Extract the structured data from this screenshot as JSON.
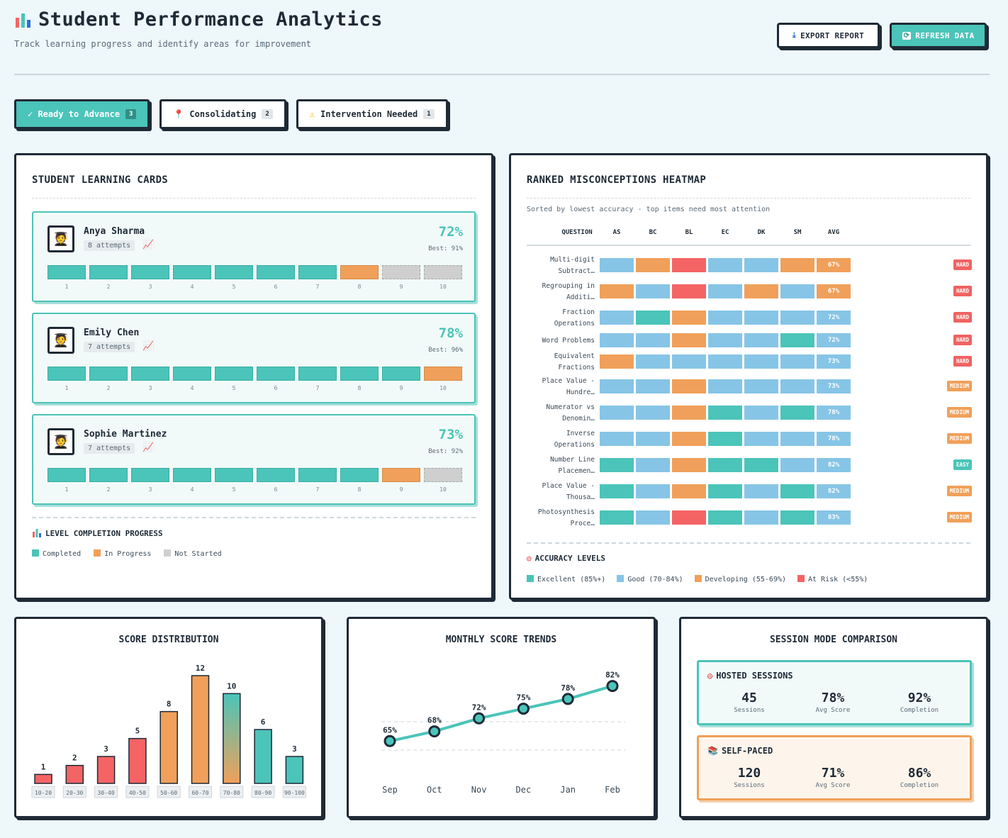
{
  "header": {
    "icon": "bar-chart-icon",
    "title": "Student Performance Analytics",
    "subtitle": "Track learning progress and identify areas for improvement",
    "export_label": "EXPORT REPORT",
    "refresh_label": "REFRESH DATA"
  },
  "filters": [
    {
      "label": "✓ Ready to Advance",
      "count": "3"
    },
    {
      "label": "Consolidating",
      "count": "2"
    },
    {
      "label": "Intervention Needed",
      "count": "1"
    }
  ],
  "cards_panel": {
    "title": "STUDENT LEARNING CARDS",
    "level_title": "LEVEL COMPLETION PROGRESS",
    "legend": [
      "Completed",
      "In Progress",
      "Not Started"
    ],
    "levels": [
      "1",
      "2",
      "3",
      "4",
      "5",
      "6",
      "7",
      "8",
      "9",
      "10"
    ]
  },
  "students": [
    {
      "name": "Anya Sharma",
      "attempts": "8 attempts",
      "score": "72%",
      "best": "Best: 91%",
      "progress": [
        "completed",
        "completed",
        "completed",
        "completed",
        "completed",
        "completed",
        "completed",
        "inprogress",
        "notstarted",
        "notstarted"
      ]
    },
    {
      "name": "Emily Chen",
      "attempts": "7 attempts",
      "score": "78%",
      "best": "Best: 96%",
      "progress": [
        "completed",
        "completed",
        "completed",
        "completed",
        "completed",
        "completed",
        "completed",
        "completed",
        "completed",
        "inprogress"
      ]
    },
    {
      "name": "Sophie Martinez",
      "attempts": "7 attempts",
      "score": "73%",
      "best": "Best: 92%",
      "progress": [
        "completed",
        "completed",
        "completed",
        "completed",
        "completed",
        "completed",
        "completed",
        "completed",
        "inprogress",
        "notstarted"
      ]
    }
  ],
  "heatmap": {
    "title": "RANKED MISCONCEPTIONS HEATMAP",
    "subtitle": "Sorted by lowest accuracy - top items need most attention",
    "columns": [
      "QUESTION",
      "AS",
      "BC",
      "BL",
      "EC",
      "DK",
      "SM",
      "AVG"
    ],
    "rows": [
      {
        "q1": "Multi-digit",
        "q2": "Subtract…",
        "cells": [
          "good",
          "developing",
          "risk",
          "good",
          "good",
          "developing"
        ],
        "avg": "67%",
        "avg_level": "developing",
        "tag": "HARD"
      },
      {
        "q1": "Regrouping in",
        "q2": "Additi…",
        "cells": [
          "developing",
          "good",
          "risk",
          "good",
          "developing",
          "good"
        ],
        "avg": "67%",
        "avg_level": "developing",
        "tag": "HARD"
      },
      {
        "q1": "Fraction",
        "q2": "Operations",
        "cells": [
          "good",
          "excellent",
          "developing",
          "good",
          "good",
          "good"
        ],
        "avg": "72%",
        "avg_level": "good",
        "tag": "HARD"
      },
      {
        "q1": "Word Problems",
        "q2": "",
        "cells": [
          "good",
          "good",
          "developing",
          "good",
          "good",
          "excellent"
        ],
        "avg": "72%",
        "avg_level": "good",
        "tag": "HARD"
      },
      {
        "q1": "Equivalent",
        "q2": "Fractions",
        "cells": [
          "developing",
          "good",
          "good",
          "good",
          "good",
          "good"
        ],
        "avg": "73%",
        "avg_level": "good",
        "tag": "HARD"
      },
      {
        "q1": "Place Value -",
        "q2": "Hundre…",
        "cells": [
          "good",
          "good",
          "developing",
          "good",
          "good",
          "good"
        ],
        "avg": "73%",
        "avg_level": "good",
        "tag": "MEDIUM"
      },
      {
        "q1": "Numerator vs",
        "q2": "Denomin…",
        "cells": [
          "good",
          "good",
          "developing",
          "excellent",
          "good",
          "excellent"
        ],
        "avg": "78%",
        "avg_level": "good",
        "tag": "MEDIUM"
      },
      {
        "q1": "Inverse",
        "q2": "Operations",
        "cells": [
          "good",
          "good",
          "developing",
          "excellent",
          "good",
          "good"
        ],
        "avg": "78%",
        "avg_level": "good",
        "tag": "MEDIUM"
      },
      {
        "q1": "Number Line",
        "q2": "Placemen…",
        "cells": [
          "excellent",
          "good",
          "developing",
          "excellent",
          "excellent",
          "good"
        ],
        "avg": "82%",
        "avg_level": "good",
        "tag": "EASY"
      },
      {
        "q1": "Place Value -",
        "q2": "Thousa…",
        "cells": [
          "excellent",
          "good",
          "developing",
          "excellent",
          "good",
          "excellent"
        ],
        "avg": "82%",
        "avg_level": "good",
        "tag": "MEDIUM"
      },
      {
        "q1": "Photosynthesis",
        "q2": "Proce…",
        "cells": [
          "excellent",
          "good",
          "risk",
          "excellent",
          "good",
          "excellent"
        ],
        "avg": "83%",
        "avg_level": "good",
        "tag": "MEDIUM"
      }
    ],
    "accuracy_title": "ACCURACY LEVELS",
    "accuracy_legend": [
      "Excellent (85%+)",
      "Good (70-84%)",
      "Developing (55-69%)",
      "At Risk (<55%)"
    ]
  },
  "colors": {
    "excellent": "#4bc4b9",
    "good": "#86c5e6",
    "developing": "#f0a05a",
    "risk": "#f46464",
    "not_started": "#cfcfcf",
    "dark": "#1e2a36"
  },
  "chart_data": [
    {
      "type": "bar",
      "title": "SCORE DISTRIBUTION",
      "categories": [
        "10-20",
        "20-30",
        "30-40",
        "40-50",
        "50-60",
        "60-70",
        "70-80",
        "80-90",
        "90-100"
      ],
      "values": [
        1,
        2,
        3,
        5,
        8,
        12,
        10,
        6,
        3
      ],
      "bar_colors": [
        "#f46464",
        "#f46464",
        "#f46464",
        "#f46464",
        "#f0a05a",
        "#f0a05a",
        "gradient",
        "#4bc4b9",
        "#4bc4b9"
      ],
      "ylim": [
        0,
        12
      ]
    },
    {
      "type": "line",
      "title": "MONTHLY SCORE TRENDS",
      "categories": [
        "Sep",
        "Oct",
        "Nov",
        "Dec",
        "Jan",
        "Feb"
      ],
      "values": [
        65,
        68,
        72,
        75,
        78,
        82
      ],
      "labels": [
        "65%",
        "68%",
        "72%",
        "75%",
        "78%",
        "82%"
      ]
    }
  ],
  "sessions": {
    "title": "SESSION MODE COMPARISON",
    "hosted": {
      "title": "HOSTED SESSIONS",
      "stats": [
        {
          "v": "45",
          "l": "Sessions"
        },
        {
          "v": "78%",
          "l": "Avg Score"
        },
        {
          "v": "92%",
          "l": "Completion"
        }
      ]
    },
    "self": {
      "title": "SELF-PACED",
      "stats": [
        {
          "v": "120",
          "l": "Sessions"
        },
        {
          "v": "71%",
          "l": "Avg Score"
        },
        {
          "v": "86%",
          "l": "Completion"
        }
      ]
    }
  }
}
